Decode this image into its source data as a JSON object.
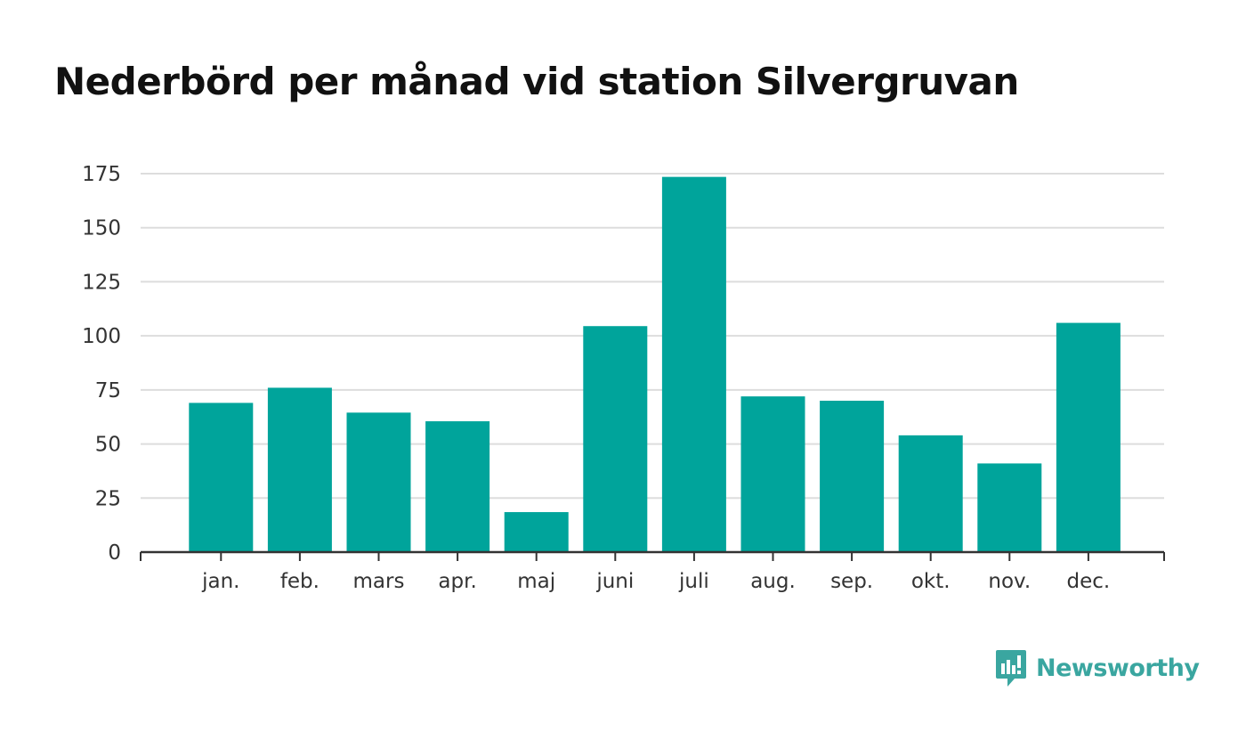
{
  "chart_data": {
    "type": "bar",
    "title": "Nederbörd per månad vid station Silvergruvan",
    "xlabel": "",
    "ylabel": "",
    "categories": [
      "jan.",
      "feb.",
      "mars",
      "apr.",
      "maj",
      "juni",
      "juli",
      "aug.",
      "sep.",
      "okt.",
      "nov.",
      "dec."
    ],
    "values": [
      69,
      76,
      64.5,
      60.5,
      18.5,
      104.5,
      173.5,
      72,
      70,
      54,
      41,
      106
    ],
    "ylim": [
      0,
      175
    ],
    "yticks": [
      "0",
      "25",
      "50",
      "75",
      "100",
      "125",
      "150",
      "175"
    ],
    "grid": true,
    "bar_color": "#00a49b",
    "grid_color": "#dddddd",
    "axis_color": "#333333"
  },
  "brand": {
    "name": "Newsworthy",
    "color": "#3aa6a0",
    "icon": "newsworthy-logo-icon"
  }
}
